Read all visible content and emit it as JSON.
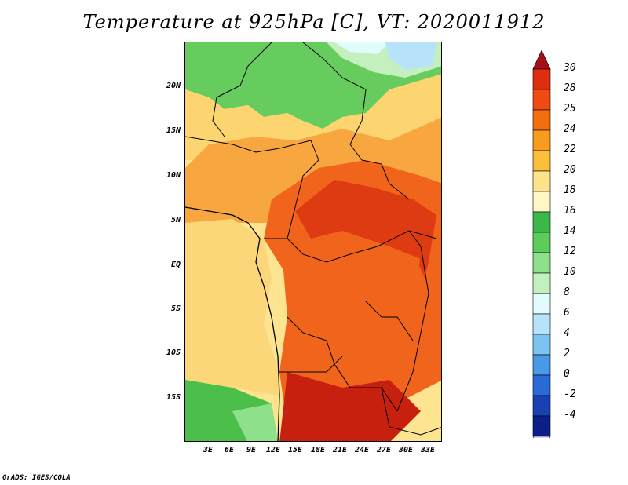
{
  "title": "Temperature at 925hPa [C], VT: 2020011912",
  "credit": "GrADS: IGES/COLA",
  "lat_labels": [
    "20N",
    "15N",
    "10N",
    "5N",
    "EQ",
    "5S",
    "10S",
    "15S"
  ],
  "lon_labels": [
    "3E",
    "6E",
    "9E",
    "12E",
    "15E",
    "18E",
    "21E",
    "24E",
    "27E",
    "30E",
    "33E"
  ],
  "colorbar": {
    "labels": [
      "30",
      "28",
      "25",
      "24",
      "22",
      "20",
      "18",
      "16",
      "14",
      "12",
      "10",
      "8",
      "6",
      "4",
      "2",
      "0",
      "-2",
      "-4"
    ],
    "colors": [
      "#a50f15",
      "#de2d0f",
      "#ef4a10",
      "#f46d0f",
      "#f99b1c",
      "#fbbf3c",
      "#fde48a",
      "#fef6c4",
      "#3cb84a",
      "#5ccc5a",
      "#8ee08a",
      "#c4f0c0",
      "#e2fbfd",
      "#b6e3fa",
      "#7cc2f2",
      "#4a98e8",
      "#2a6ad8",
      "#1842b4",
      "#0c1e8a",
      "#04084e"
    ]
  }
}
